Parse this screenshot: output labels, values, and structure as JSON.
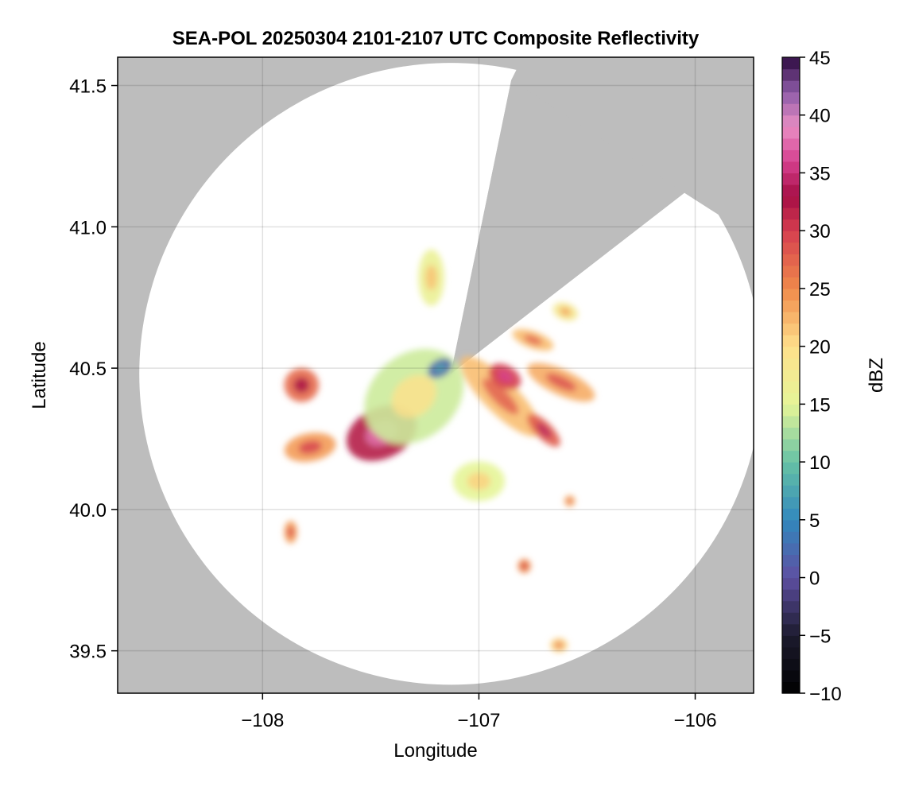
{
  "chart_data": {
    "type": "heatmap",
    "title": "SEA-POL 20250304 2101-2107 UTC Composite Reflectivity",
    "xlabel": "Longitude",
    "ylabel": "Latitude",
    "xlim": [
      -108.67,
      -105.73
    ],
    "ylim": [
      39.35,
      41.6
    ],
    "x_ticks": [
      {
        "value": -108,
        "label": "−108"
      },
      {
        "value": -107,
        "label": "−107"
      },
      {
        "value": -106,
        "label": "−106"
      }
    ],
    "y_ticks": [
      {
        "value": 39.5,
        "label": "39.5"
      },
      {
        "value": 40.0,
        "label": "40.0"
      },
      {
        "value": 40.5,
        "label": "40.5"
      },
      {
        "value": 41.0,
        "label": "41.0"
      },
      {
        "value": 41.5,
        "label": "41.5"
      }
    ],
    "grid": true,
    "background_color": "#bdbdbd",
    "radar": {
      "center_lon": -107.13,
      "center_lat": 40.48,
      "range_lat_deg": 1.1,
      "range_lon_deg": 1.44,
      "blocked_sectors": [
        {
          "from_lon": -106.85,
          "from_lat": 41.52,
          "to_lon": -106.05,
          "to_lat": 41.12
        }
      ]
    },
    "colorbar": {
      "label": "dBZ",
      "range": [
        -10,
        45
      ],
      "ticks": [
        {
          "value": 45,
          "label": "45"
        },
        {
          "value": 40,
          "label": "40"
        },
        {
          "value": 35,
          "label": "35"
        },
        {
          "value": 30,
          "label": "30"
        },
        {
          "value": 25,
          "label": "25"
        },
        {
          "value": 20,
          "label": "20"
        },
        {
          "value": 15,
          "label": "15"
        },
        {
          "value": 10,
          "label": "10"
        },
        {
          "value": 5,
          "label": "5"
        },
        {
          "value": 0,
          "label": "0"
        },
        {
          "value": -5,
          "label": "−5"
        },
        {
          "value": -10,
          "label": "−10"
        }
      ],
      "colormap": "spectral-like",
      "stops": [
        {
          "v": -10,
          "c": "#000000"
        },
        {
          "v": -5,
          "c": "#1c1b2e"
        },
        {
          "v": 0,
          "c": "#5e4fa2"
        },
        {
          "v": 5,
          "c": "#3288bd"
        },
        {
          "v": 10,
          "c": "#66c2a5"
        },
        {
          "v": 15,
          "c": "#e6f598"
        },
        {
          "v": 20,
          "c": "#fee08b"
        },
        {
          "v": 25,
          "c": "#f08a4b"
        },
        {
          "v": 30,
          "c": "#d53e4f"
        },
        {
          "v": 33,
          "c": "#a50d45"
        },
        {
          "v": 36,
          "c": "#d6408f"
        },
        {
          "v": 39,
          "c": "#e98ec4"
        },
        {
          "v": 42,
          "c": "#8e5ca8"
        },
        {
          "v": 45,
          "c": "#2d0a3f"
        }
      ]
    },
    "echo_regions": [
      {
        "lon": -107.45,
        "lat": 40.27,
        "rlon": 0.17,
        "rlat": 0.09,
        "rot": 25,
        "dbz": 32
      },
      {
        "lon": -107.3,
        "lat": 40.4,
        "rlon": 0.25,
        "rlat": 0.15,
        "rot": 40,
        "dbz": 14
      },
      {
        "lon": -107.18,
        "lat": 40.5,
        "rlon": 0.06,
        "rlat": 0.03,
        "rot": 30,
        "dbz": 2
      },
      {
        "lon": -106.9,
        "lat": 40.4,
        "rlon": 0.25,
        "rlat": 0.06,
        "rot": -45,
        "dbz": 22
      },
      {
        "lon": -106.88,
        "lat": 40.47,
        "rlon": 0.08,
        "rlat": 0.04,
        "rot": -30,
        "dbz": 30
      },
      {
        "lon": -106.7,
        "lat": 40.28,
        "rlon": 0.1,
        "rlat": 0.03,
        "rot": -45,
        "dbz": 28
      },
      {
        "lon": -106.62,
        "lat": 40.45,
        "rlon": 0.17,
        "rlat": 0.045,
        "rot": -25,
        "dbz": 23
      },
      {
        "lon": -107.78,
        "lat": 40.22,
        "rlon": 0.12,
        "rlat": 0.05,
        "rot": 10,
        "dbz": 24
      },
      {
        "lon": -107.82,
        "lat": 40.44,
        "rlon": 0.08,
        "rlat": 0.06,
        "rot": 0,
        "dbz": 27
      },
      {
        "lon": -107.22,
        "lat": 40.82,
        "rlon": 0.06,
        "rlat": 0.1,
        "rot": 0,
        "dbz": 16
      },
      {
        "lon": -106.75,
        "lat": 40.6,
        "rlon": 0.1,
        "rlat": 0.03,
        "rot": -20,
        "dbz": 22
      },
      {
        "lon": -107.87,
        "lat": 39.92,
        "rlon": 0.03,
        "rlat": 0.04,
        "rot": 0,
        "dbz": 24
      },
      {
        "lon": -106.79,
        "lat": 39.8,
        "rlon": 0.03,
        "rlat": 0.025,
        "rot": 0,
        "dbz": 25
      },
      {
        "lon": -106.63,
        "lat": 39.52,
        "rlon": 0.04,
        "rlat": 0.025,
        "rot": 0,
        "dbz": 21
      },
      {
        "lon": -106.58,
        "lat": 40.03,
        "rlon": 0.025,
        "rlat": 0.02,
        "rot": 0,
        "dbz": 23
      },
      {
        "lon": -107.0,
        "lat": 40.1,
        "rlon": 0.12,
        "rlat": 0.07,
        "rot": 0,
        "dbz": 15
      },
      {
        "lon": -106.6,
        "lat": 40.7,
        "rlon": 0.06,
        "rlat": 0.03,
        "rot": -20,
        "dbz": 18
      }
    ]
  }
}
